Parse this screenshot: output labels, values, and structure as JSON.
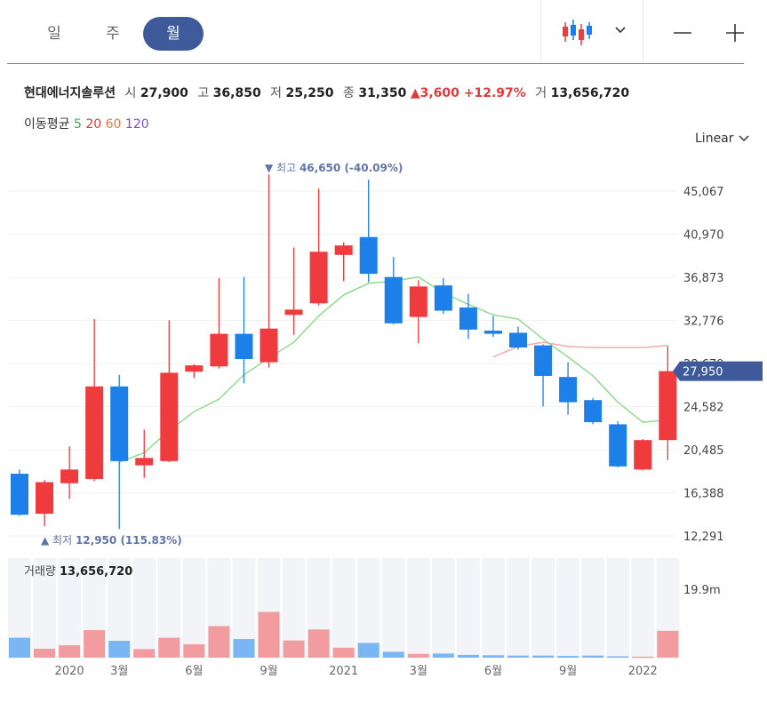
{
  "tabs": [
    {
      "label": "일",
      "active": false
    },
    {
      "label": "주",
      "active": false
    },
    {
      "label": "월",
      "active": true
    }
  ],
  "toolbar": {
    "chart_type_icon": "candlestick-icon",
    "dropdown_icon": "chevron-down-icon",
    "zoom_out_icon": "minus-icon",
    "zoom_in_icon": "plus-icon"
  },
  "stock": {
    "name": "현대에너지솔루션",
    "open_label": "시",
    "open": "27,900",
    "high_label": "고",
    "high": "36,850",
    "low_label": "저",
    "low": "25,250",
    "close_label": "종",
    "close": "31,350",
    "change": "▲3,600 +12.97%",
    "volume_label": "거",
    "volume": "13,656,720"
  },
  "moving_average": {
    "label": "이동평균",
    "periods": [
      "5",
      "20",
      "60",
      "120"
    ],
    "colors": [
      "#3cb043",
      "#e33b3b",
      "#e8793a",
      "#7b4fd6"
    ]
  },
  "scale_label": "Linear",
  "volume_panel": {
    "label": "거래량",
    "value": "13,656,720",
    "max_tick": "19.9m"
  },
  "colors": {
    "up": "#ef3a3e",
    "down": "#1d7fe8",
    "up_vol": "#f29ca0",
    "down_vol": "#7ab6f4",
    "ma5": "#8fdc8f",
    "ma20": "#f4a9ae",
    "accent": "#3e5a9a"
  },
  "chart_data": {
    "type": "candlestick",
    "y_ticks": [
      "45,067",
      "40,970",
      "36,873",
      "32,776",
      "28,679",
      "24,582",
      "20,485",
      "16,388",
      "12,291"
    ],
    "ylim": [
      12291,
      45067
    ],
    "current_price": "27,950",
    "max_annotation": {
      "label": "▼ 최고",
      "value": "46,650 (-40.09%)"
    },
    "min_annotation": {
      "label": "▲ 최저",
      "value": "12,950 (115.83%)"
    },
    "x_labels": [
      {
        "index": 2,
        "text": "2020"
      },
      {
        "index": 4,
        "text": "3월"
      },
      {
        "index": 7,
        "text": "6월"
      },
      {
        "index": 10,
        "text": "9월"
      },
      {
        "index": 13,
        "text": "2021"
      },
      {
        "index": 16,
        "text": "3월"
      },
      {
        "index": 19,
        "text": "6월"
      },
      {
        "index": 22,
        "text": "9월"
      },
      {
        "index": 25,
        "text": "2022"
      }
    ],
    "candles": [
      {
        "o": 18200,
        "h": 18600,
        "l": 14200,
        "c": 14300
      },
      {
        "o": 14400,
        "h": 17600,
        "l": 13200,
        "c": 17400
      },
      {
        "o": 17300,
        "h": 20800,
        "l": 15800,
        "c": 18600
      },
      {
        "o": 17700,
        "h": 32900,
        "l": 17500,
        "c": 26500
      },
      {
        "o": 26500,
        "h": 27600,
        "l": 12950,
        "c": 19400
      },
      {
        "o": 19000,
        "h": 22400,
        "l": 17800,
        "c": 19700
      },
      {
        "o": 19400,
        "h": 32800,
        "l": 19300,
        "c": 27800
      },
      {
        "o": 27900,
        "h": 28600,
        "l": 27300,
        "c": 28500
      },
      {
        "o": 28400,
        "h": 36800,
        "l": 28200,
        "c": 31500
      },
      {
        "o": 31500,
        "h": 36900,
        "l": 26800,
        "c": 29100
      },
      {
        "o": 28800,
        "h": 46650,
        "l": 28300,
        "c": 32000
      },
      {
        "o": 33300,
        "h": 39700,
        "l": 31400,
        "c": 33800
      },
      {
        "o": 34400,
        "h": 45300,
        "l": 34200,
        "c": 39300
      },
      {
        "o": 39000,
        "h": 40200,
        "l": 36500,
        "c": 39900
      },
      {
        "o": 40700,
        "h": 46150,
        "l": 36400,
        "c": 37200
      },
      {
        "o": 36900,
        "h": 38800,
        "l": 32400,
        "c": 32500
      },
      {
        "o": 33100,
        "h": 36600,
        "l": 30600,
        "c": 36000
      },
      {
        "o": 36100,
        "h": 36800,
        "l": 33400,
        "c": 33700
      },
      {
        "o": 34000,
        "h": 35300,
        "l": 31000,
        "c": 31900
      },
      {
        "o": 31800,
        "h": 33200,
        "l": 31200,
        "c": 31500
      },
      {
        "o": 31600,
        "h": 32200,
        "l": 30000,
        "c": 30200
      },
      {
        "o": 30400,
        "h": 30500,
        "l": 24600,
        "c": 27500
      },
      {
        "o": 27400,
        "h": 28800,
        "l": 23800,
        "c": 25000
      },
      {
        "o": 25200,
        "h": 25400,
        "l": 22900,
        "c": 23100
      },
      {
        "o": 22900,
        "h": 23200,
        "l": 18800,
        "c": 18900
      },
      {
        "o": 18600,
        "h": 21500,
        "l": 18500,
        "c": 21400
      },
      {
        "o": 21400,
        "h": 30350,
        "l": 19500,
        "c": 27950
      }
    ],
    "ma5": [
      null,
      null,
      null,
      null,
      19300,
      20200,
      22300,
      24100,
      25300,
      27600,
      29200,
      30700,
      33200,
      35200,
      36300,
      36500,
      36900,
      35400,
      34300,
      33300,
      32900,
      31000,
      29300,
      27500,
      25000,
      23100,
      23300
    ],
    "ma20": [
      null,
      null,
      null,
      null,
      null,
      null,
      null,
      null,
      null,
      null,
      null,
      null,
      null,
      null,
      null,
      null,
      null,
      null,
      null,
      29300,
      30300,
      30700,
      30300,
      30200,
      30200,
      30200,
      30400
    ],
    "volume_max": 19900000,
    "volumes": [
      5800000,
      2600000,
      3600000,
      8000000,
      4900000,
      2500000,
      5800000,
      3900000,
      9200000,
      5400000,
      13300000,
      5000000,
      8200000,
      2900000,
      4300000,
      1700000,
      1100000,
      1200000,
      800000,
      700000,
      600000,
      600000,
      500000,
      600000,
      400000,
      300000,
      7800000
    ]
  }
}
